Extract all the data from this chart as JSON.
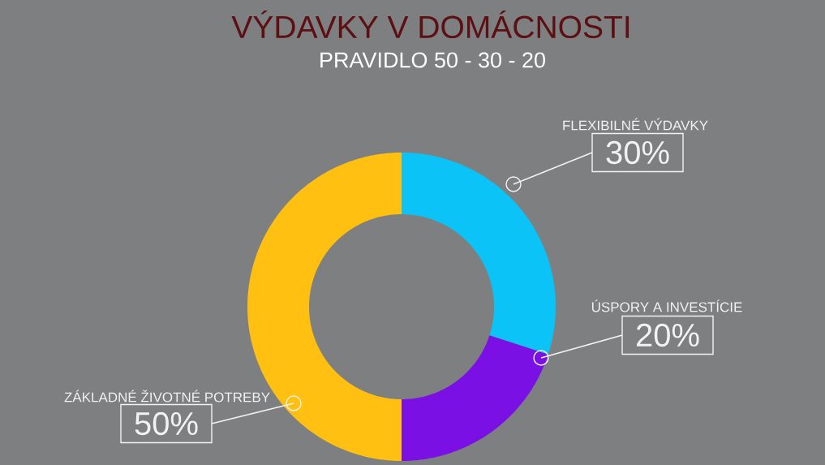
{
  "chart_data": {
    "type": "donut",
    "title": "VÝDAVKY V DOMÁCNOSTI",
    "subtitle": "PRAVIDLO 50 - 30 - 20",
    "categories": [
      "FLEXIBILNÉ VÝDAVKY",
      "ÚSPORY A INVESTÍCIE",
      "ZÁKLADNÉ ŽIVOTNÉ POTREBY"
    ],
    "values": [
      30,
      20,
      50
    ],
    "colors": [
      "#0cc3f7",
      "#7a10e4",
      "#ffc012"
    ],
    "value_labels": [
      "30%",
      "20%",
      "50%"
    ]
  }
}
